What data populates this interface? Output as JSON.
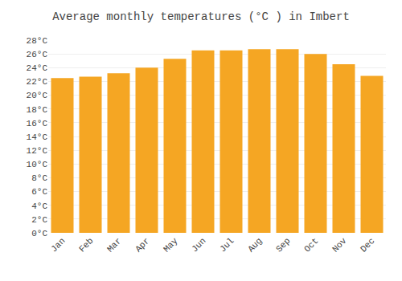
{
  "chart_data": {
    "type": "bar",
    "title": "Average monthly temperatures (°C ) in Imbert",
    "categories": [
      "Jan",
      "Feb",
      "Mar",
      "Apr",
      "May",
      "Jun",
      "Jul",
      "Aug",
      "Sep",
      "Oct",
      "Nov",
      "Dec"
    ],
    "values": [
      22.5,
      22.7,
      23.2,
      24.0,
      25.3,
      26.5,
      26.5,
      26.7,
      26.7,
      26.0,
      24.5,
      22.8
    ],
    "color": "#F5A623",
    "ylim": [
      0,
      28
    ],
    "yticks": [
      {
        "value": 0,
        "label": "0°C"
      },
      {
        "value": 2,
        "label": "2°C"
      },
      {
        "value": 4,
        "label": "4°C"
      },
      {
        "value": 6,
        "label": "6°C"
      },
      {
        "value": 8,
        "label": "8°C"
      },
      {
        "value": 10,
        "label": "10°C"
      },
      {
        "value": 12,
        "label": "12°C"
      },
      {
        "value": 14,
        "label": "14°C"
      },
      {
        "value": 16,
        "label": "16°C"
      },
      {
        "value": 18,
        "label": "18°C"
      },
      {
        "value": 20,
        "label": "20°C"
      },
      {
        "value": 22,
        "label": "22°C"
      },
      {
        "value": 24,
        "label": "24°C"
      },
      {
        "value": 26,
        "label": "26°C"
      },
      {
        "value": 28,
        "label": "28°C"
      }
    ],
    "grid": true
  }
}
